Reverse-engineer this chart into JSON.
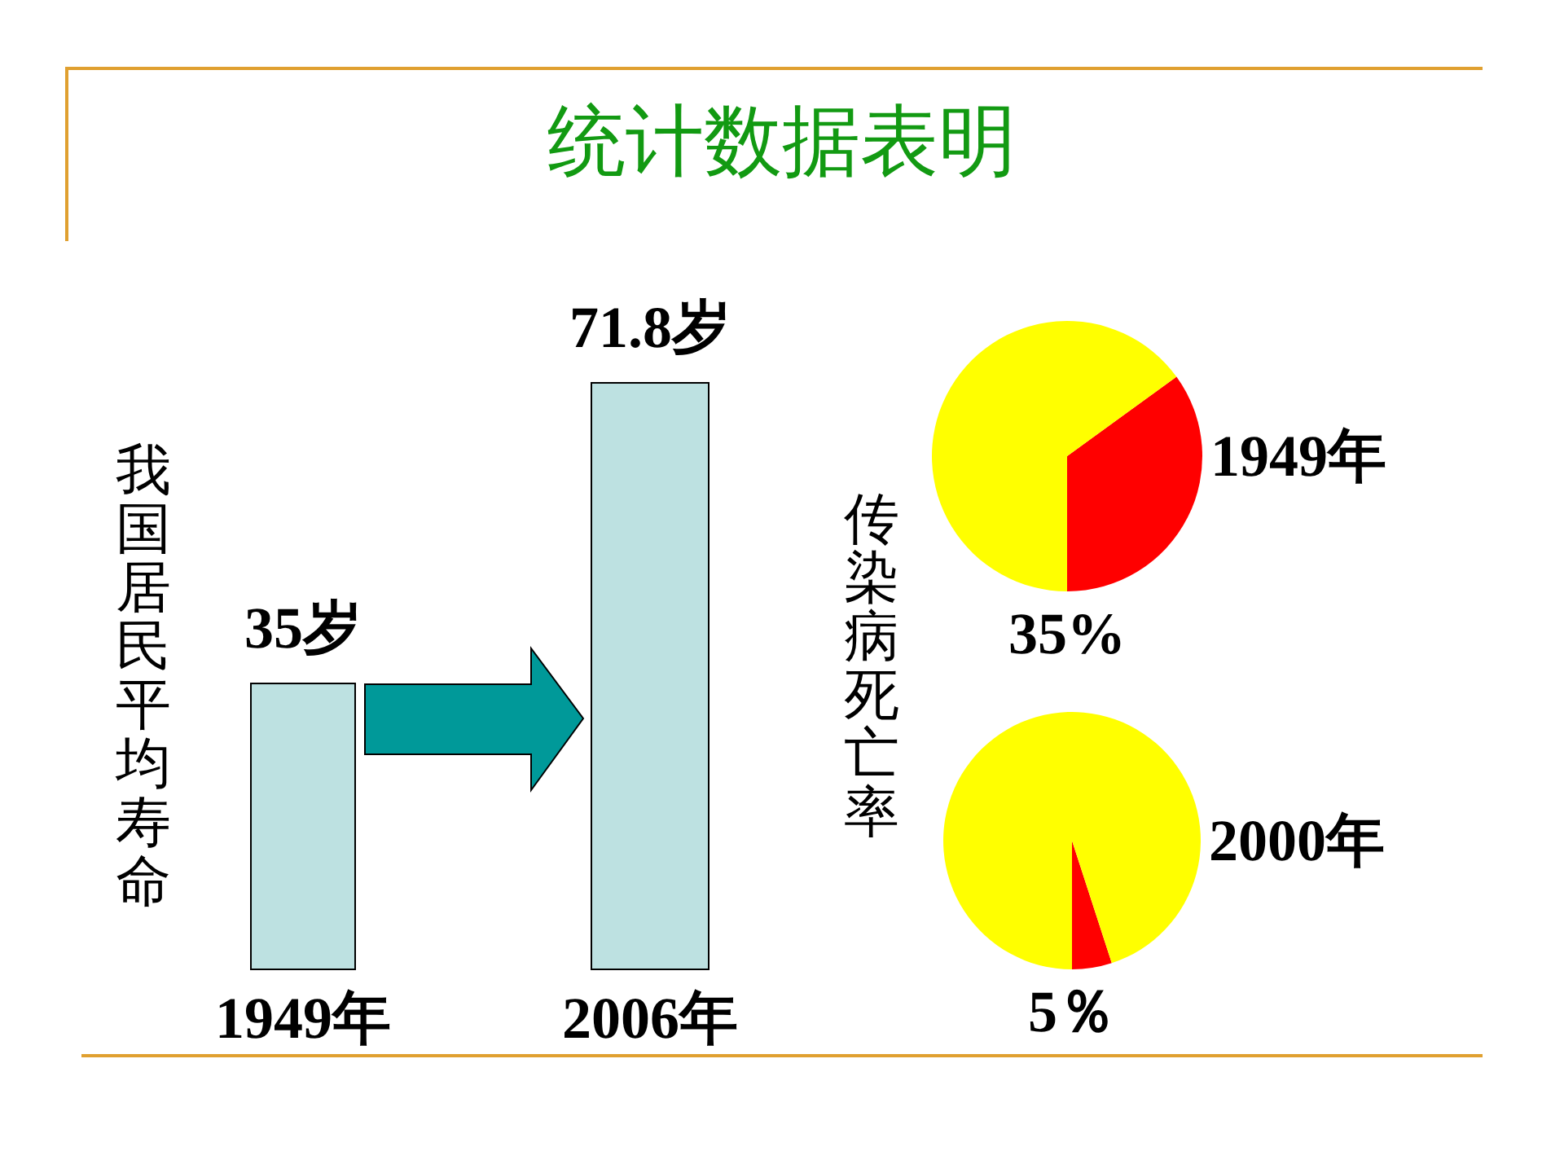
{
  "chart_data": [
    {
      "type": "bar",
      "title": "统计数据表明",
      "ylabel": "我国居民平均寿命",
      "categories": [
        "1949年",
        "2006年"
      ],
      "values": [
        35,
        71.8
      ],
      "value_labels": [
        "35岁",
        "71.8岁"
      ],
      "color": "#bde1e1"
    },
    {
      "type": "pie",
      "title": "1949年",
      "ylabel": "传染病死亡率",
      "categories": [
        null,
        null
      ],
      "values": [
        35,
        65
      ],
      "colors": [
        "#ff0000",
        "#ffff00"
      ],
      "value_labels": [
        "35%",
        null
      ]
    },
    {
      "type": "pie",
      "title": "2000年",
      "categories": [
        null,
        null
      ],
      "values": [
        5,
        95
      ],
      "colors": [
        "#ff0000",
        "#ffff00"
      ],
      "value_labels": [
        "5％",
        null
      ]
    }
  ]
}
